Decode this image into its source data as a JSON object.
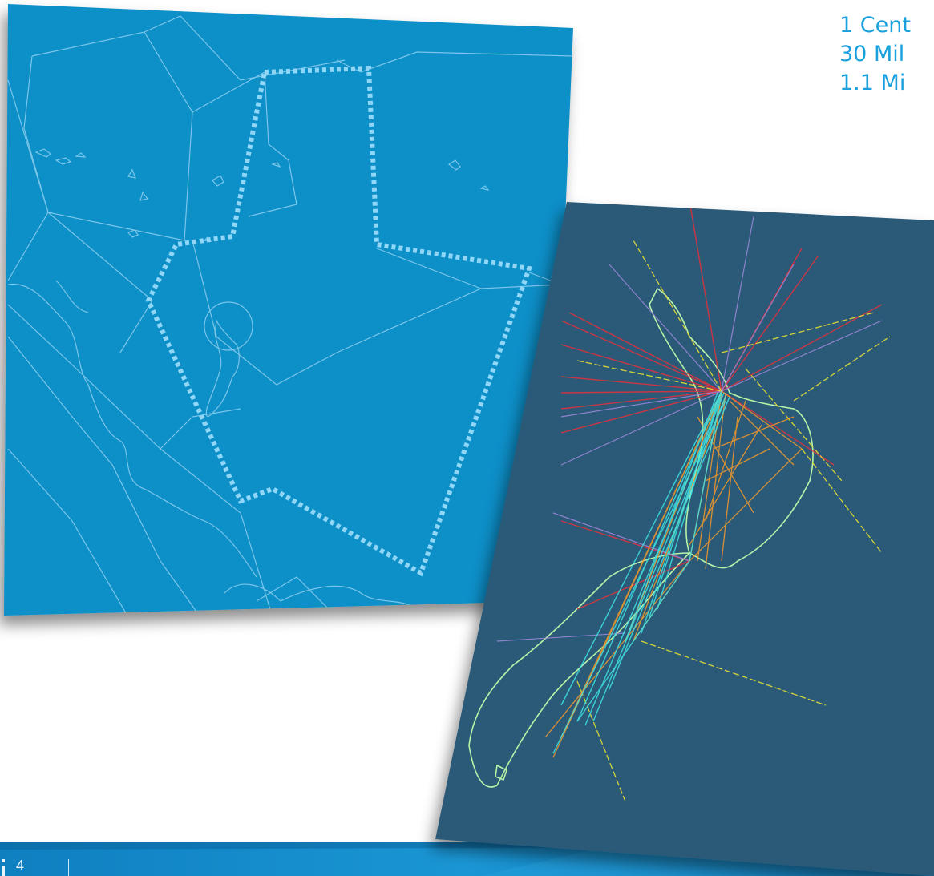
{
  "stats": {
    "line1": "1 Cent",
    "line2": "30 Mil",
    "line3": "1.1 Mi"
  },
  "footer": {
    "page_number": "4"
  },
  "colors": {
    "map_blue": "#0c8fc8",
    "dashed_boundary": "#8fd6f7",
    "track_panel": "#2b5a78",
    "track_red": "#e8303b",
    "track_orange": "#f59a2a",
    "track_cyan": "#3fe3e3",
    "track_purple": "#9b86d6",
    "track_yellow": "#e8e033",
    "coastline_green": "#b8f2a8",
    "stats_text": "#1aa0dc"
  }
}
